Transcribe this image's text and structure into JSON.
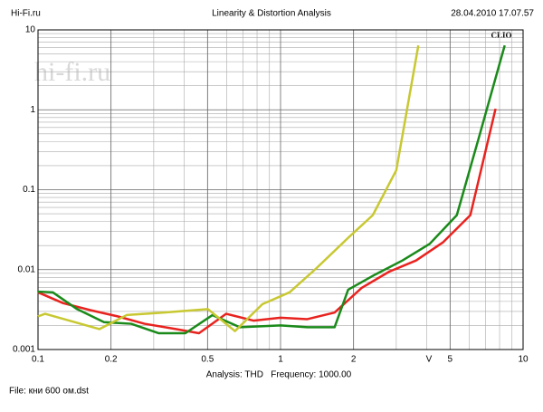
{
  "chart_data": {
    "type": "line",
    "header_left": "Hi-Fi.ru",
    "title": "Linearity & Distortion Analysis",
    "header_right": "28.04.2010 17.07.57",
    "watermark": "hi-fi.ru",
    "brand": "CLIO",
    "xlabel": "V",
    "footer": "Analysis: THD   Frequency: 1000.00",
    "file": "File: кни 600 ом.dst",
    "xscale": "log",
    "yscale": "log",
    "grid": true,
    "xlim": [
      0.1,
      10
    ],
    "xticks": [
      0.1,
      0.2,
      0.5,
      1,
      2,
      5,
      10
    ],
    "ylim": [
      0.001,
      10
    ],
    "yticks": [
      0.001,
      0.01,
      0.1,
      1,
      10
    ],
    "series": [
      {
        "color": "#e8231f",
        "x": [
          0.1,
          0.127,
          0.165,
          0.213,
          0.275,
          0.372,
          0.461,
          0.597,
          0.773,
          1,
          1.29,
          1.67,
          2.16,
          2.8,
          3.62,
          4.68,
          6.06,
          7.7
        ],
        "values": [
          0.0052,
          0.0038,
          0.0031,
          0.0026,
          0.0021,
          0.0018,
          0.0016,
          0.0028,
          0.0023,
          0.0025,
          0.0024,
          0.0029,
          0.0059,
          0.0094,
          0.013,
          0.022,
          0.048,
          1.03
        ]
      },
      {
        "color": "#1a8a1a",
        "x": [
          0.1,
          0.115,
          0.145,
          0.187,
          0.242,
          0.314,
          0.405,
          0.524,
          0.679,
          1,
          1.29,
          1.67,
          1.9,
          2.46,
          3.18,
          4.12,
          5.33,
          6.6,
          8.4
        ],
        "values": [
          0.0053,
          0.0052,
          0.0032,
          0.0022,
          0.0021,
          0.0016,
          0.0016,
          0.0027,
          0.0019,
          0.002,
          0.0019,
          0.0019,
          0.0056,
          0.0087,
          0.013,
          0.021,
          0.048,
          0.47,
          6.4
        ]
      },
      {
        "color": "#c8c832",
        "x": [
          0.1,
          0.107,
          0.179,
          0.232,
          0.327,
          0.502,
          0.649,
          0.842,
          1.09,
          1.41,
          1.9,
          2.4,
          3.0,
          3.7
        ],
        "values": [
          0.0026,
          0.0028,
          0.0018,
          0.0027,
          0.0029,
          0.0032,
          0.0017,
          0.0037,
          0.0052,
          0.0105,
          0.025,
          0.048,
          0.175,
          6.4
        ]
      }
    ]
  }
}
